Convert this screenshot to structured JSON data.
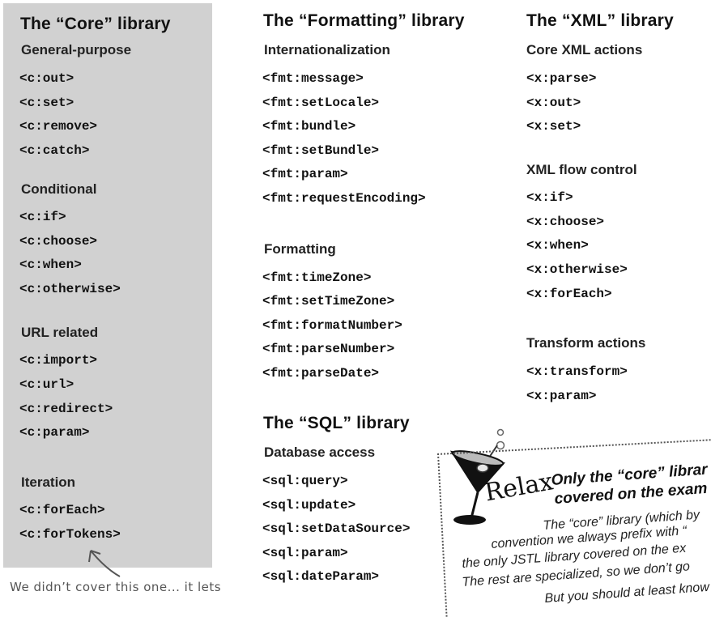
{
  "core": {
    "title": "The “Core” library",
    "general_title": "General-purpose",
    "general": [
      "<c:out>",
      "<c:set>",
      "<c:remove>",
      "<c:catch>"
    ],
    "conditional_title": "Conditional",
    "conditional": [
      "<c:if>",
      "<c:choose>",
      "<c:when>",
      "<c:otherwise>"
    ],
    "url_title": "URL related",
    "url": [
      "<c:import>",
      "<c:url>",
      "<c:redirect>",
      "<c:param>"
    ],
    "iteration_title": "Iteration",
    "iteration": [
      "<c:forEach>",
      "<c:forTokens>"
    ]
  },
  "fmt": {
    "title": "The “Formatting” library",
    "i18n_title": "Internationalization",
    "i18n": [
      "<fmt:message>",
      "<fmt:setLocale>",
      "<fmt:bundle>",
      "<fmt:setBundle>",
      "<fmt:param>",
      "<fmt:requestEncoding>"
    ],
    "formatting_title": "Formatting",
    "formatting": [
      "<fmt:timeZone>",
      "<fmt:setTimeZone>",
      "<fmt:formatNumber>",
      "<fmt:parseNumber>",
      "<fmt:parseDate>"
    ]
  },
  "sql": {
    "title": "The “SQL” library",
    "db_title": "Database access",
    "db": [
      "<sql:query>",
      "<sql:update>",
      "<sql:setDataSource>",
      "<sql:param>",
      "<sql:dateParam>"
    ]
  },
  "xml": {
    "title": "The “XML” library",
    "core_title": "Core XML actions",
    "core": [
      "<x:parse>",
      "<x:out>",
      "<x:set>"
    ],
    "flow_title": "XML flow control",
    "flow": [
      "<x:if>",
      "<x:choose>",
      "<x:when>",
      "<x:otherwise>",
      "<x:forEach>"
    ],
    "transform_title": "Transform actions",
    "transform": [
      "<x:transform>",
      "<x:param>"
    ]
  },
  "note": "We didn’t cover this one... it lets",
  "relax": {
    "word": "Relax",
    "heading_line1": "Only the “core” librar",
    "heading_line2": "covered on the exam",
    "body": [
      "The “core” library (which by",
      "convention we always prefix with “",
      "the only JSTL library covered on the ex",
      "The rest are specialized, so we don’t go",
      "But you should at least know"
    ]
  }
}
